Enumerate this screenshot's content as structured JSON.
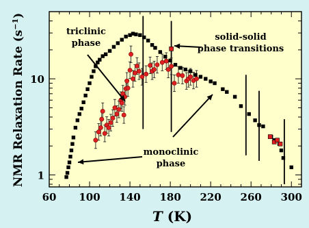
{
  "chart_data": {
    "type": "scatter",
    "xlabel": "T (K)",
    "xlabel_italic": "T",
    "xlabel_unit": "(K)",
    "ylabel": "NMR Relaxation Rate (s⁻¹)",
    "ylabel_main": "NMR Relaxation Rate (s",
    "ylabel_sup": "−1",
    "ylabel_close": ")",
    "xlim": [
      60,
      310
    ],
    "ylim": [
      0.75,
      50
    ],
    "yscale": "log",
    "x_ticks": [
      60,
      100,
      140,
      180,
      220,
      260,
      300
    ],
    "x_ticklabels": [
      "60",
      "100",
      "140",
      "180",
      "220",
      "260",
      "300"
    ],
    "y_ticks": [
      1,
      10
    ],
    "y_ticklabels": [
      "1",
      "10"
    ],
    "grid": false,
    "colors": {
      "black_series": "#000000",
      "red_series": "#e02020",
      "plot_background": "#ffffcc",
      "page_background": "#d6f1f1"
    },
    "series": [
      {
        "marker": "square",
        "color": "#000000",
        "points": [
          [
            77,
            0.95
          ],
          [
            78,
            1.05
          ],
          [
            79,
            1.2
          ],
          [
            80,
            1.35
          ],
          [
            81,
            1.55
          ],
          [
            82,
            1.8
          ],
          [
            83,
            2.1
          ],
          [
            84,
            2.45
          ],
          [
            86,
            3.1
          ],
          [
            88,
            3.7
          ],
          [
            90,
            4.3
          ],
          [
            92,
            4.9
          ],
          [
            94,
            5.7
          ],
          [
            96,
            6.7
          ],
          [
            98,
            7.8
          ],
          [
            100,
            9.0
          ],
          [
            102,
            10.5
          ],
          [
            104,
            12.0
          ],
          [
            106,
            13.5
          ],
          [
            108,
            14.8
          ],
          [
            110,
            15.8
          ],
          [
            113,
            17.2
          ],
          [
            116,
            18.0
          ],
          [
            120,
            19.5
          ],
          [
            124,
            21.5
          ],
          [
            128,
            23.5
          ],
          [
            132,
            25.5
          ],
          [
            136,
            27.5
          ],
          [
            140,
            28.5
          ],
          [
            143,
            29.5
          ],
          [
            146,
            29.0
          ],
          [
            150,
            28.5
          ],
          [
            154,
            27.0
          ],
          [
            158,
            25.0
          ],
          [
            162,
            22.5
          ],
          [
            165,
            21.0
          ],
          [
            170,
            19.0
          ],
          [
            175,
            17.0
          ],
          [
            180,
            15.5
          ],
          [
            185,
            14.0
          ],
          [
            190,
            13.0
          ],
          [
            195,
            12.5
          ],
          [
            200,
            12.0
          ],
          [
            205,
            11.0
          ],
          [
            210,
            10.5
          ],
          [
            215,
            10.0
          ],
          [
            220,
            9.4
          ],
          [
            224,
            9.0
          ],
          [
            232,
            7.8
          ],
          [
            236,
            7.3
          ],
          [
            244,
            6.5
          ],
          [
            250,
            5.2
          ],
          [
            258,
            4.3
          ],
          [
            264,
            3.7
          ],
          [
            268,
            3.3
          ],
          [
            272,
            3.2
          ],
          [
            280,
            2.5
          ],
          [
            283,
            2.3
          ],
          [
            288,
            2.1
          ],
          [
            290,
            1.8
          ],
          [
            292,
            1.5
          ],
          [
            300,
            1.2
          ]
        ]
      },
      {
        "marker": "circle",
        "color": "#e02020",
        "points": [
          [
            106,
            2.3
          ],
          [
            109,
            2.8
          ],
          [
            111,
            3.1
          ],
          [
            112,
            3.8
          ],
          [
            113,
            4.6
          ],
          [
            115,
            2.7
          ],
          [
            117,
            3.3
          ],
          [
            119,
            3.1
          ],
          [
            121,
            3.5
          ],
          [
            123,
            3.9
          ],
          [
            125,
            5.0
          ],
          [
            127,
            4.3
          ],
          [
            129,
            4.8
          ],
          [
            131,
            6.0
          ],
          [
            132,
            5.6
          ],
          [
            133,
            7.0
          ],
          [
            134,
            4.2
          ],
          [
            135,
            6.5
          ],
          [
            136,
            7.9
          ],
          [
            137,
            9.5
          ],
          [
            138,
            8.0
          ],
          [
            140,
            12.3
          ],
          [
            141,
            18.0
          ],
          [
            143,
            10.0
          ],
          [
            145,
            11.5
          ],
          [
            147,
            13.6
          ],
          [
            149,
            12.0
          ],
          [
            152,
            10.5
          ],
          [
            156,
            11.2
          ],
          [
            160,
            13.8
          ],
          [
            162,
            12.0
          ],
          [
            164,
            12.5
          ],
          [
            167,
            14.0
          ],
          [
            172,
            14.8
          ],
          [
            176,
            15.3
          ],
          [
            178,
            12.5
          ],
          [
            181,
            13.5
          ],
          [
            184,
            9.0
          ],
          [
            188,
            11.0
          ],
          [
            192,
            10.8
          ],
          [
            196,
            9.5
          ],
          [
            198,
            10.0
          ],
          [
            200,
            10.5
          ],
          [
            203,
            9.6
          ],
          [
            206,
            10.0
          ]
        ]
      },
      {
        "marker": "square",
        "color": "#e02020",
        "points": [
          [
            181,
            20.5
          ],
          [
            279,
            2.5
          ],
          [
            283,
            2.2
          ],
          [
            286,
            2.3
          ],
          [
            289,
            2.1
          ]
        ]
      }
    ],
    "transition_markers": [
      {
        "x": 153,
        "y_range": [
          3.0,
          45
        ]
      },
      {
        "x": 181,
        "y_range": [
          2.8,
          40
        ]
      },
      {
        "x": 255,
        "y_range": [
          1.6,
          11
        ]
      },
      {
        "x": 268,
        "y_range": [
          1.4,
          7.5
        ]
      },
      {
        "x": 293,
        "y_range": [
          0.8,
          3.8
        ]
      }
    ],
    "annotations": [
      {
        "id": "triclinic",
        "lines": [
          "triclinic",
          "phase"
        ]
      },
      {
        "id": "transitions",
        "lines": [
          "solid-solid",
          "phase transitions"
        ]
      },
      {
        "id": "monoclinic",
        "lines": [
          "monoclinic",
          "phase"
        ]
      }
    ]
  }
}
